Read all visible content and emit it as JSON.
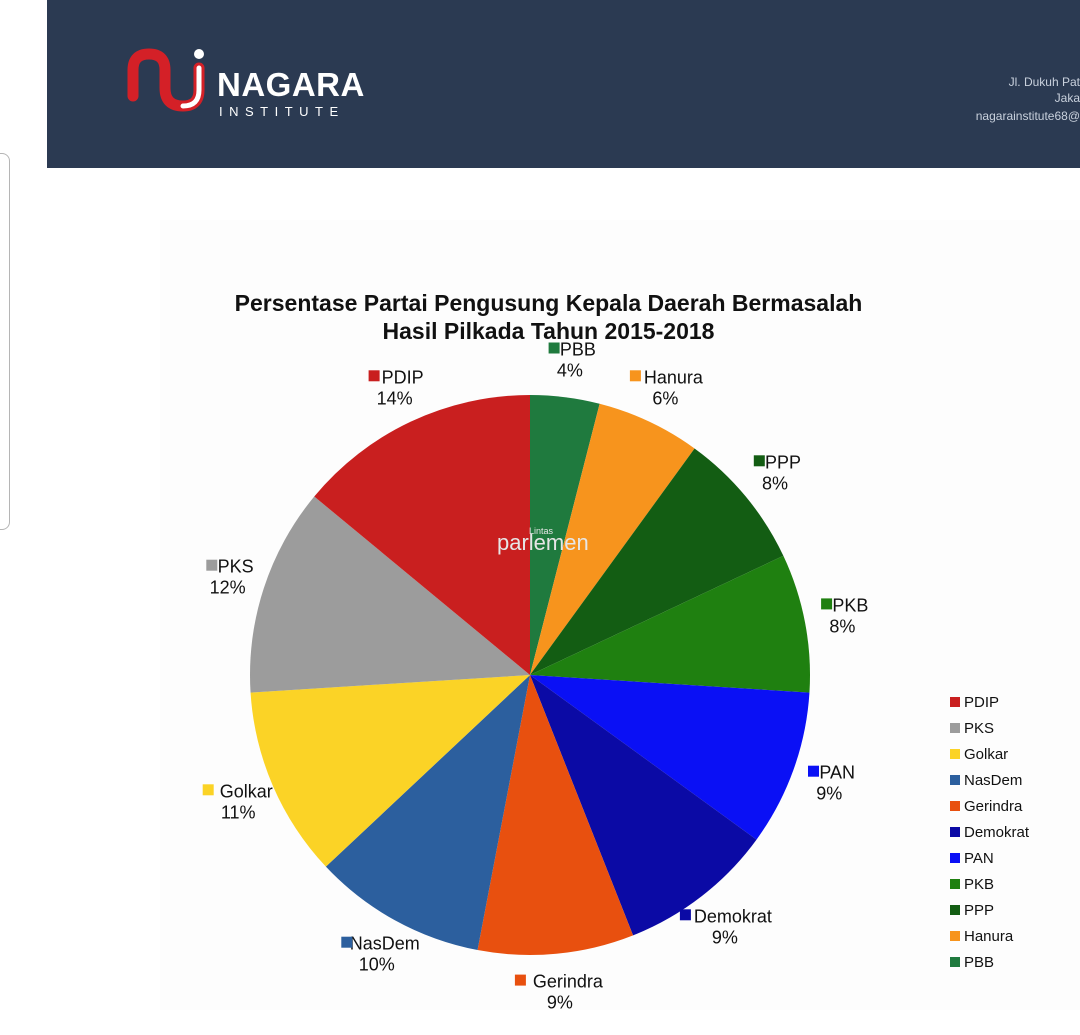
{
  "header": {
    "logo_name": "NAGARA",
    "logo_sub": "INSTITUTE",
    "address_line1": "Jl. Dukuh Pat",
    "address_line2": "Jaka",
    "address_line3": "nagarainstitute68@"
  },
  "watermark": {
    "small": "Lintas",
    "big": "parlemen"
  },
  "chart_data": {
    "type": "pie",
    "title": "Persentase Partai Pengusung Kepala Daerah Bermasalah",
    "subtitle": "Hasil Pilkada Tahun 2015-2018",
    "legend_position": "right",
    "slices": [
      {
        "label": "PBB",
        "value": 4,
        "pct": "4%",
        "color": "#1f7a3e"
      },
      {
        "label": "Hanura",
        "value": 6,
        "pct": "6%",
        "color": "#f7941d"
      },
      {
        "label": "PPP",
        "value": 8,
        "pct": "8%",
        "color": "#135d13"
      },
      {
        "label": "PKB",
        "value": 8,
        "pct": "8%",
        "color": "#1f8010"
      },
      {
        "label": "PAN",
        "value": 9,
        "pct": "9%",
        "color": "#0a10f5"
      },
      {
        "label": "Demokrat",
        "value": 9,
        "pct": "9%",
        "color": "#0b0aa5"
      },
      {
        "label": "Gerindra",
        "value": 9,
        "pct": "9%",
        "color": "#e8500f"
      },
      {
        "label": "NasDem",
        "value": 10,
        "pct": "10%",
        "color": "#2c5f9e"
      },
      {
        "label": "Golkar",
        "value": 11,
        "pct": "11%",
        "color": "#fbd326"
      },
      {
        "label": "PKS",
        "value": 12,
        "pct": "12%",
        "color": "#9c9c9c"
      },
      {
        "label": "PDIP",
        "value": 14,
        "pct": "14%",
        "color": "#c91f1f"
      }
    ],
    "legend": [
      "PDIP",
      "PKS",
      "Golkar",
      "NasDem",
      "Gerindra",
      "Demokrat",
      "PAN",
      "PKB",
      "PPP",
      "Hanura",
      "PBB"
    ]
  }
}
